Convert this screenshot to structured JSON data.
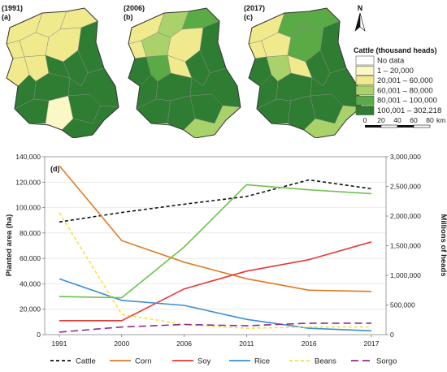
{
  "maps": [
    {
      "year": "(1991)",
      "panel": "(a)"
    },
    {
      "year": "(2006)",
      "panel": "(b)"
    },
    {
      "year": "(2017)",
      "panel": "(c)"
    }
  ],
  "north_label": "N",
  "map_legend": {
    "title": "Cattle (thousand heads)",
    "items": [
      {
        "label": "No data",
        "color": "#ffffff"
      },
      {
        "label": "1 – 20,000",
        "color": "#fbf7c6"
      },
      {
        "label": "20,001 – 60,000",
        "color": "#f1ea8c"
      },
      {
        "label": "60,001 – 80,000",
        "color": "#a9d26a"
      },
      {
        "label": "80,001 – 100,000",
        "color": "#5aab45"
      },
      {
        "label": "100,001 – 302,218",
        "color": "#2e7d32"
      }
    ]
  },
  "scale_bar": {
    "ticks": [
      "0",
      "20",
      "40",
      "60",
      "80"
    ],
    "unit": "km"
  },
  "chart_data": {
    "type": "line",
    "panel": "(d)",
    "x": [
      "1991",
      "2000",
      "2006",
      "2011",
      "2016",
      "2017"
    ],
    "ylabel": "Planted area (ha)",
    "ylabel_right": "Millions of heads",
    "ylim": [
      0,
      140000
    ],
    "ylim_right": [
      0,
      3000000
    ],
    "yticks": [
      "0",
      "20,000",
      "40,000",
      "60,000",
      "80,000",
      "100,000",
      "120,000",
      "140,000"
    ],
    "yticks_right": [
      "0",
      "500,000",
      "1,000,000",
      "1,500,000",
      "2,000,000",
      "2,500,000",
      "3,000,000"
    ],
    "legend_position": "bottom",
    "series": [
      {
        "name": "Cattle",
        "axis": "right",
        "color": "#111111",
        "dash": "4,3",
        "values": [
          1900000,
          2060000,
          2200000,
          2330000,
          2610000,
          2460000
        ]
      },
      {
        "name": "Corn",
        "axis": "left",
        "color": "#e07b22",
        "dash": "",
        "values": [
          133000,
          74000,
          57000,
          44000,
          35000,
          34000
        ]
      },
      {
        "name": "Soy",
        "axis": "left",
        "color": "#e53935",
        "dash": "",
        "values": [
          11000,
          11000,
          36000,
          50000,
          59000,
          73000
        ]
      },
      {
        "name": "Rice",
        "axis": "left",
        "color": "#3b8fd3",
        "dash": "",
        "values": [
          44000,
          27000,
          23000,
          12000,
          5000,
          3000
        ]
      },
      {
        "name": "Beans",
        "axis": "left",
        "color": "#f2e23a",
        "dash": "4,3",
        "values": [
          96000,
          16000,
          8000,
          5000,
          6000,
          6000
        ]
      },
      {
        "name": "Sorgo",
        "axis": "left",
        "color": "#8e2c8e",
        "dash": "9,5",
        "values": [
          2000,
          6000,
          8000,
          7000,
          9000,
          9000
        ]
      },
      {
        "name": "",
        "axis": "left",
        "color": "#6cc24a",
        "dash": "",
        "values": [
          30000,
          29000,
          69000,
          118000,
          114000,
          111000
        ]
      }
    ]
  }
}
